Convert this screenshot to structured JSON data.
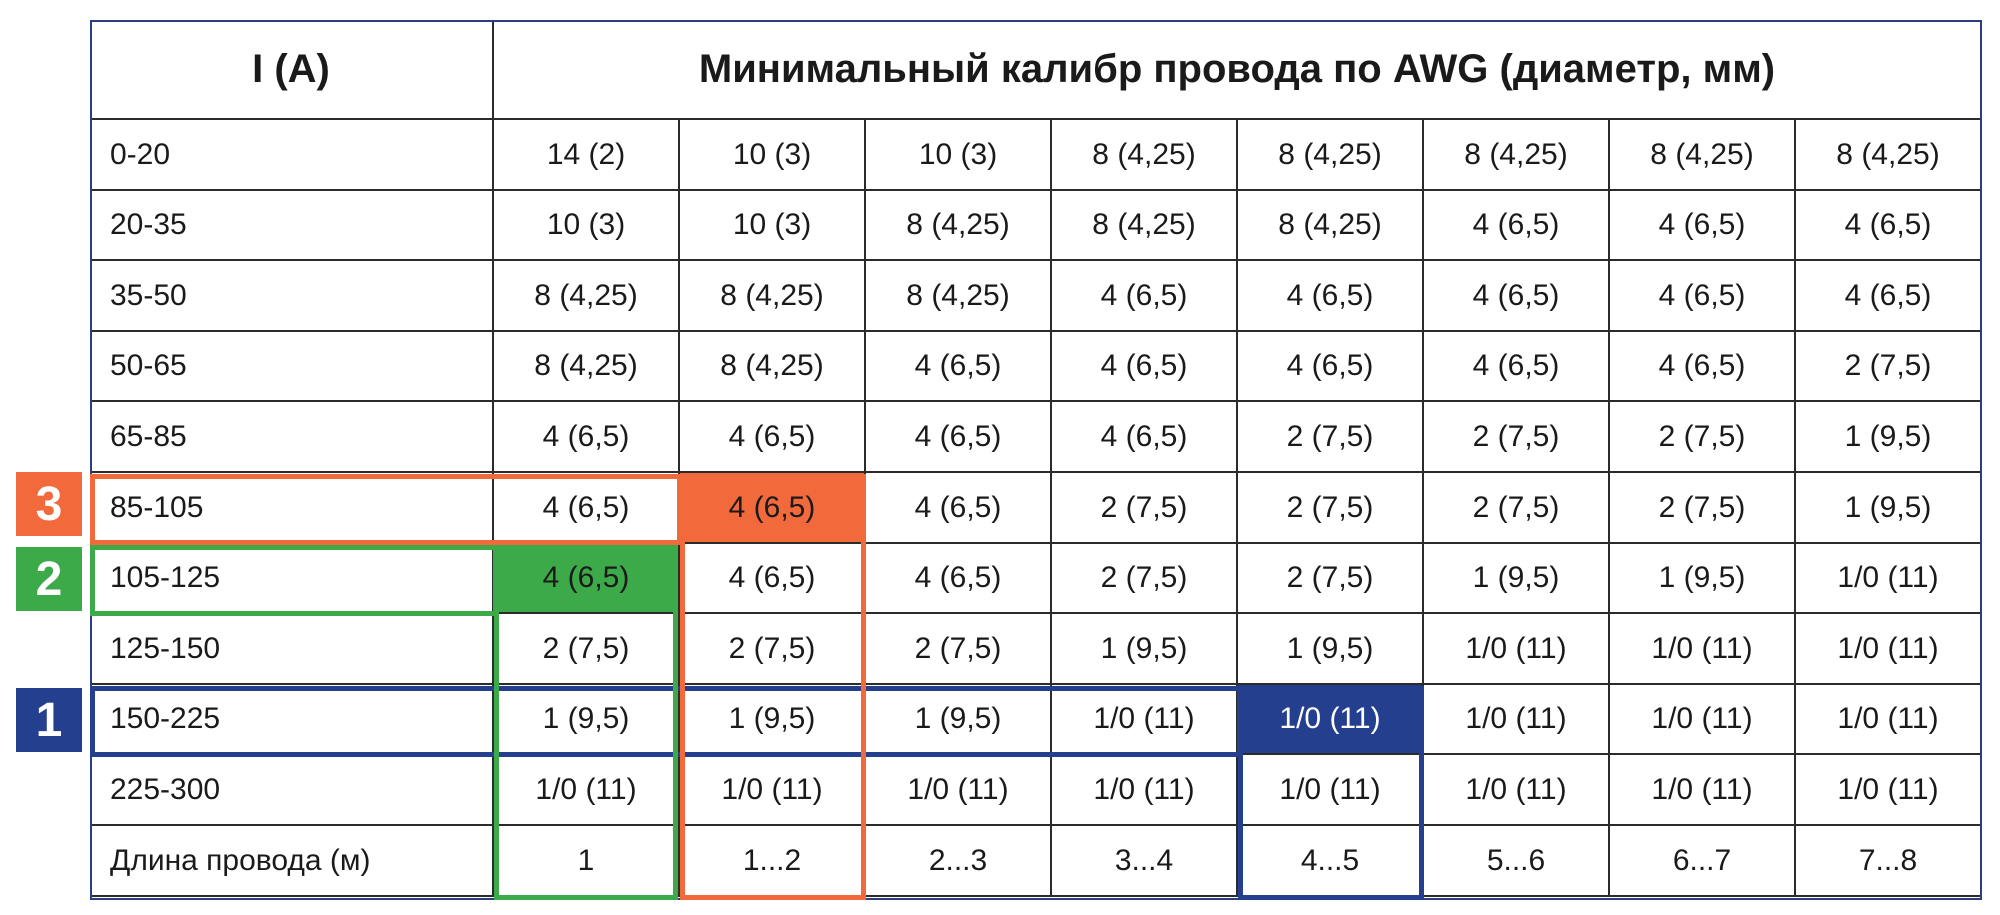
{
  "header": {
    "current_label": "I (A)",
    "gauge_label": "Минимальный калибр провода по AWG (диаметр, мм)"
  },
  "rows": [
    {
      "current": "0-20",
      "values": [
        "14 (2)",
        "10 (3)",
        "10 (3)",
        "8 (4,25)",
        "8 (4,25)",
        "8 (4,25)",
        "8 (4,25)",
        "8 (4,25)"
      ]
    },
    {
      "current": "20-35",
      "values": [
        "10 (3)",
        "10 (3)",
        "8 (4,25)",
        "8 (4,25)",
        "8 (4,25)",
        "4 (6,5)",
        "4 (6,5)",
        "4 (6,5)"
      ]
    },
    {
      "current": "35-50",
      "values": [
        "8 (4,25)",
        "8 (4,25)",
        "8 (4,25)",
        "4 (6,5)",
        "4 (6,5)",
        "4 (6,5)",
        "4 (6,5)",
        "4 (6,5)"
      ]
    },
    {
      "current": "50-65",
      "values": [
        "8 (4,25)",
        "8 (4,25)",
        "4 (6,5)",
        "4 (6,5)",
        "4 (6,5)",
        "4 (6,5)",
        "4 (6,5)",
        "2 (7,5)"
      ]
    },
    {
      "current": "65-85",
      "values": [
        "4 (6,5)",
        "4 (6,5)",
        "4 (6,5)",
        "4 (6,5)",
        "2 (7,5)",
        "2 (7,5)",
        "2 (7,5)",
        "1 (9,5)"
      ]
    },
    {
      "current": "85-105",
      "values": [
        "4 (6,5)",
        "4 (6,5)",
        "4 (6,5)",
        "2 (7,5)",
        "2 (7,5)",
        "2 (7,5)",
        "2 (7,5)",
        "1 (9,5)"
      ]
    },
    {
      "current": "105-125",
      "values": [
        "4 (6,5)",
        "4 (6,5)",
        "4 (6,5)",
        "2 (7,5)",
        "2 (7,5)",
        "1 (9,5)",
        "1 (9,5)",
        "1/0 (11)"
      ]
    },
    {
      "current": "125-150",
      "values": [
        "2 (7,5)",
        "2 (7,5)",
        "2 (7,5)",
        "1 (9,5)",
        "1 (9,5)",
        "1/0 (11)",
        "1/0 (11)",
        "1/0 (11)"
      ]
    },
    {
      "current": "150-225",
      "values": [
        "1 (9,5)",
        "1 (9,5)",
        "1 (9,5)",
        "1/0 (11)",
        "1/0 (11)",
        "1/0 (11)",
        "1/0 (11)",
        "1/0 (11)"
      ]
    },
    {
      "current": "225-300",
      "values": [
        "1/0 (11)",
        "1/0 (11)",
        "1/0 (11)",
        "1/0 (11)",
        "1/0 (11)",
        "1/0 (11)",
        "1/0 (11)",
        "1/0 (11)"
      ]
    }
  ],
  "footer": {
    "length_label": "Длина провода (м)",
    "lengths": [
      "1",
      "1...2",
      "2...3",
      "3...4",
      "4...5",
      "5...6",
      "6...7",
      "7...8"
    ]
  },
  "examples": [
    {
      "badge": "1",
      "row_index": 8,
      "col_index": 4,
      "color": "#253f8f"
    },
    {
      "badge": "2",
      "row_index": 6,
      "col_index": 0,
      "color": "#3daa4a"
    },
    {
      "badge": "3",
      "row_index": 5,
      "col_index": 1,
      "color": "#f26a3c"
    }
  ]
}
